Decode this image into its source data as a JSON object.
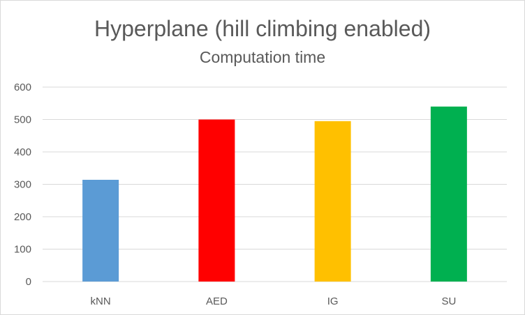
{
  "chart_data": {
    "type": "bar",
    "title": "Hyperplane (hill climbing enabled)",
    "subtitle": "Computation time",
    "categories": [
      "kNN",
      "AED",
      "IG",
      "SU"
    ],
    "values": [
      314,
      500,
      495,
      540
    ],
    "colors": [
      "#5b9bd5",
      "#ff0000",
      "#ffc000",
      "#00b050"
    ],
    "yticks": [
      0,
      100,
      200,
      300,
      400,
      500,
      600
    ],
    "ylim": [
      0,
      600
    ],
    "grid": true,
    "legend": "none",
    "gridline_color": "#d9d9d9",
    "text_color": "#595959"
  }
}
